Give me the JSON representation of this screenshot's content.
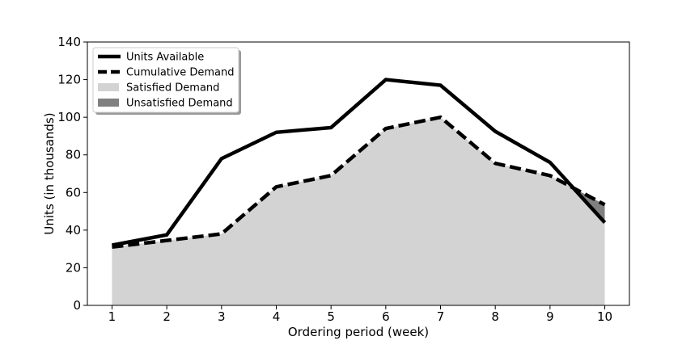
{
  "chart_data": {
    "type": "area",
    "title": "",
    "xlabel": "Ordering period (week)",
    "ylabel": "Units (in thousands)",
    "x": [
      1,
      2,
      3,
      4,
      5,
      6,
      7,
      8,
      9,
      10
    ],
    "xlim": [
      0.55,
      10.45
    ],
    "ylim": [
      0,
      140
    ],
    "yticks": [
      0,
      20,
      40,
      60,
      80,
      100,
      120,
      140
    ],
    "grid": false,
    "legend_position": "top-left",
    "series": [
      {
        "name": "Units Available",
        "style": "solid",
        "color": "#000000",
        "values": [
          32,
          37.5,
          78,
          92,
          94.5,
          120,
          117,
          92.5,
          76,
          44
        ]
      },
      {
        "name": "Cumulative Demand",
        "style": "dashed",
        "color": "#000000",
        "values": [
          31,
          34.5,
          38,
          63,
          69,
          94,
          100,
          75.5,
          69,
          53.5
        ]
      }
    ],
    "fills": [
      {
        "name": "Satisfied Demand",
        "color": "#d3d3d3",
        "rule": "min(Units Available, Cumulative Demand)"
      },
      {
        "name": "Unsatisfied Demand",
        "color": "#808080",
        "rule": "Cumulative Demand above Units Available"
      }
    ]
  }
}
